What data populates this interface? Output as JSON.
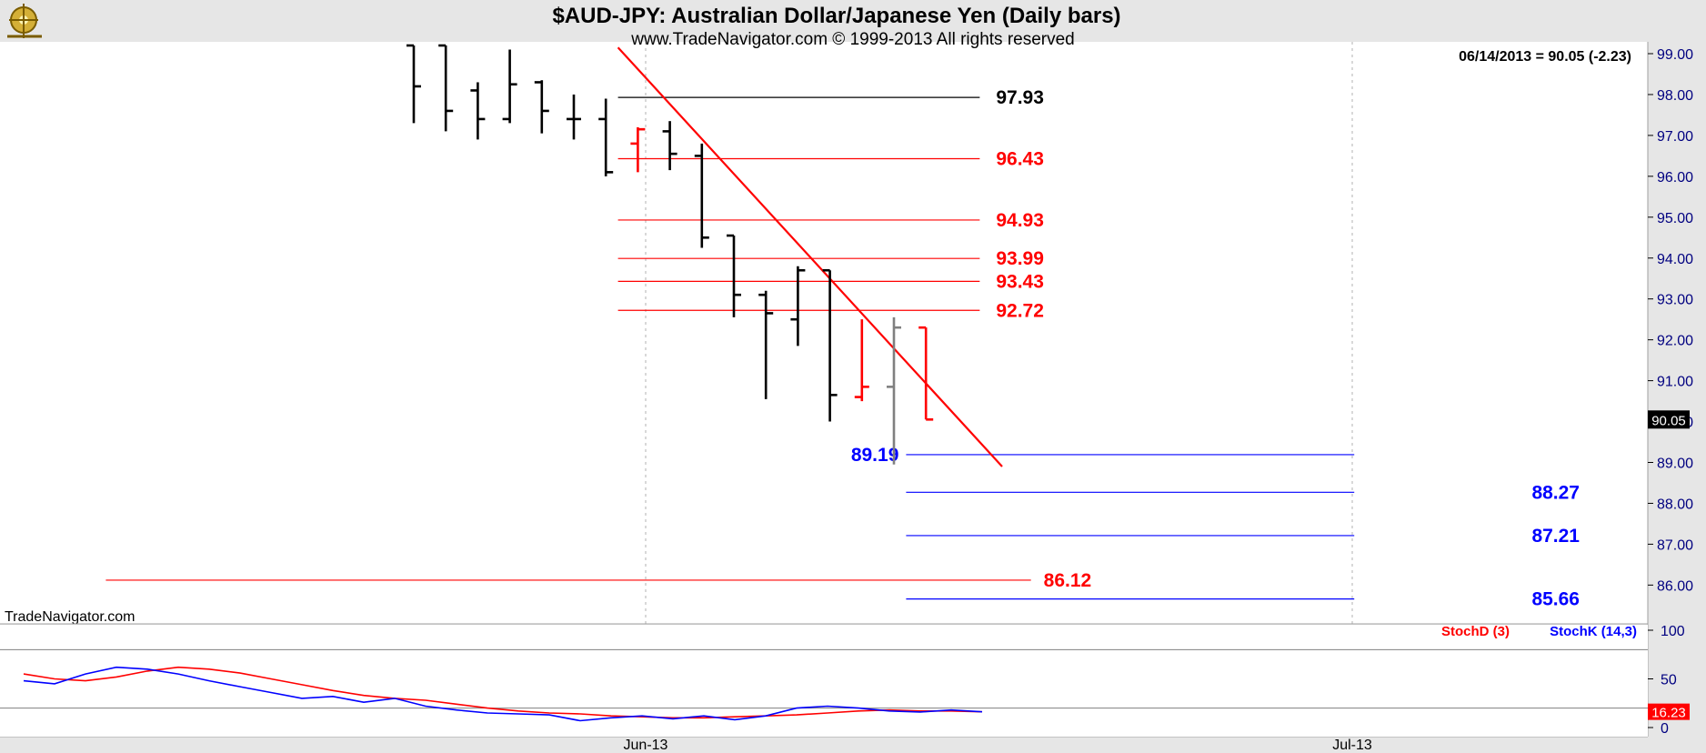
{
  "header": {
    "title": "$AUD-JPY:  Australian Dollar/Japanese Yen  (Daily bars)",
    "subtitle": "www.TradeNavigator.com © 1999-2013 All rights reserved",
    "last_quote": "06/14/2013 = 90.05 (-2.23)",
    "watermark": "TradeNavigator.com"
  },
  "colors": {
    "background": "#e6e6e6",
    "plot_bg": "#ffffff",
    "up_bar": "#000000",
    "down_bar": "#ff0000",
    "neutral_bar": "#808080",
    "trendline": "#ff0000",
    "resistance": "#ff0000",
    "support": "#0000ff",
    "axis_text": "#000080"
  },
  "chart_data": [
    {
      "type": "ohlc",
      "title": "$AUD-JPY:  Australian Dollar/Japanese Yen  (Daily bars)",
      "y_ticks": [
        "86.00",
        "87.00",
        "88.00",
        "89.00",
        "90.00",
        "91.00",
        "92.00",
        "93.00",
        "94.00",
        "95.00",
        "96.00",
        "97.00",
        "98.00",
        "99.00"
      ],
      "ylim": [
        85.5,
        99.1
      ],
      "x_ticks": [
        {
          "label": "Jun-13",
          "index": 6.6
        },
        {
          "label": "Jul-13",
          "index": 27.6
        }
      ],
      "last_price_label": "90.05",
      "bars": [
        {
          "o": 99.2,
          "h": 99.2,
          "l": 97.3,
          "c": 98.2,
          "color": "up"
        },
        {
          "o": 99.2,
          "h": 99.2,
          "l": 97.1,
          "c": 97.6,
          "color": "up"
        },
        {
          "o": 98.1,
          "h": 98.3,
          "l": 96.9,
          "c": 97.4,
          "color": "up"
        },
        {
          "o": 97.4,
          "h": 99.1,
          "l": 97.3,
          "c": 98.25,
          "color": "up"
        },
        {
          "o": 98.3,
          "h": 98.35,
          "l": 97.05,
          "c": 97.6,
          "color": "up"
        },
        {
          "o": 97.4,
          "h": 98.0,
          "l": 96.9,
          "c": 97.4,
          "color": "up"
        },
        {
          "o": 97.4,
          "h": 97.9,
          "l": 96.0,
          "c": 96.1,
          "color": "up"
        },
        {
          "o": 96.8,
          "h": 97.2,
          "l": 96.1,
          "c": 97.15,
          "color": "down"
        },
        {
          "o": 97.1,
          "h": 97.35,
          "l": 96.15,
          "c": 96.55,
          "color": "up"
        },
        {
          "o": 96.5,
          "h": 96.8,
          "l": 94.25,
          "c": 94.5,
          "color": "up"
        },
        {
          "o": 94.55,
          "h": 94.55,
          "l": 92.55,
          "c": 93.1,
          "color": "up"
        },
        {
          "o": 93.1,
          "h": 93.2,
          "l": 90.55,
          "c": 92.65,
          "color": "up"
        },
        {
          "o": 92.5,
          "h": 93.8,
          "l": 91.85,
          "c": 93.7,
          "color": "up"
        },
        {
          "o": 93.7,
          "h": 93.7,
          "l": 90.0,
          "c": 90.65,
          "color": "up"
        },
        {
          "o": 90.6,
          "h": 92.5,
          "l": 90.5,
          "c": 90.85,
          "color": "down"
        },
        {
          "o": 90.85,
          "h": 92.55,
          "l": 88.95,
          "c": 92.3,
          "color": "neutral"
        },
        {
          "o": 92.3,
          "h": 92.3,
          "l": 90.05,
          "c": 90.05,
          "color": "down"
        }
      ],
      "trendline": {
        "from": {
          "index": 3,
          "value": 99.15
        },
        "to": {
          "index": 15,
          "value": 88.9
        }
      },
      "levels": [
        {
          "value": 97.93,
          "label": "97.93",
          "color": "#000000",
          "from": 3,
          "to": 14.3
        },
        {
          "value": 96.43,
          "label": "96.43",
          "color": "#ff0000",
          "from": 3,
          "to": 14.3
        },
        {
          "value": 94.93,
          "label": "94.93",
          "color": "#ff0000",
          "from": 3,
          "to": 14.3
        },
        {
          "value": 93.99,
          "label": "93.99",
          "color": "#ff0000",
          "from": 3,
          "to": 14.3
        },
        {
          "value": 93.43,
          "label": "93.43",
          "color": "#ff0000",
          "from": 3,
          "to": 14.3
        },
        {
          "value": 92.72,
          "label": "92.72",
          "color": "#ff0000",
          "from": 3,
          "to": 14.3
        },
        {
          "value": 89.19,
          "label": "89.19",
          "color": "#0000ff",
          "from": 12,
          "to": 26,
          "label_side": "left"
        },
        {
          "value": 88.27,
          "label": "88.27",
          "color": "#0000ff",
          "from": 12,
          "to": 26
        },
        {
          "value": 87.21,
          "label": "87.21",
          "color": "#0000ff",
          "from": 12,
          "to": 26
        },
        {
          "value": 86.12,
          "label": "86.12",
          "color": "#ff0000",
          "from": -13,
          "to": 15.9
        },
        {
          "value": 85.66,
          "label": "85.66",
          "color": "#0000ff",
          "from": 12,
          "to": 26
        }
      ]
    },
    {
      "type": "line",
      "title": "",
      "y_ticks": [
        "0",
        "50",
        "100"
      ],
      "ylim": [
        0,
        100
      ],
      "legend": [
        "StochD (3)",
        "StochK (14,3)"
      ],
      "reference_lines": [
        80,
        20
      ],
      "last_value_label": "16.23",
      "series": [
        {
          "name": "StochD (3)",
          "color": "#ff0000",
          "values": [
            55,
            50,
            48,
            52,
            58,
            62,
            60,
            56,
            50,
            44,
            38,
            33,
            30,
            28,
            24,
            20,
            17,
            15,
            14,
            12,
            11,
            10,
            10,
            11,
            12,
            13,
            15,
            17,
            18,
            17,
            17,
            16.2
          ]
        },
        {
          "name": "StochK (14,3)",
          "color": "#0000ff",
          "values": [
            48,
            45,
            55,
            62,
            60,
            55,
            48,
            42,
            36,
            30,
            32,
            26,
            30,
            22,
            18,
            15,
            14,
            13,
            7,
            10,
            12,
            9,
            12,
            8,
            12,
            20,
            22,
            20,
            17,
            16,
            18,
            16.2
          ]
        }
      ]
    }
  ]
}
